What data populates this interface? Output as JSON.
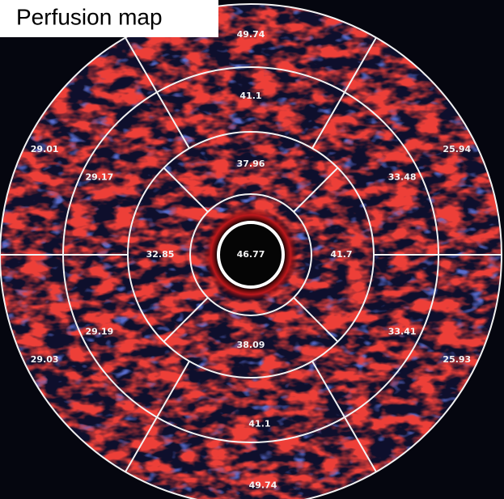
{
  "title": "Perfusion map",
  "center": {
    "value": 46.77
  },
  "rings": [
    {
      "segments": [
        37.96,
        41.7,
        38.09,
        32.85
      ]
    },
    {
      "segments": [
        41.1,
        33.48,
        33.41,
        41.1,
        29.19,
        29.17
      ]
    },
    {
      "segments": [
        49.74,
        25.94,
        25.93,
        49.74,
        29.03,
        29.01
      ]
    }
  ]
}
